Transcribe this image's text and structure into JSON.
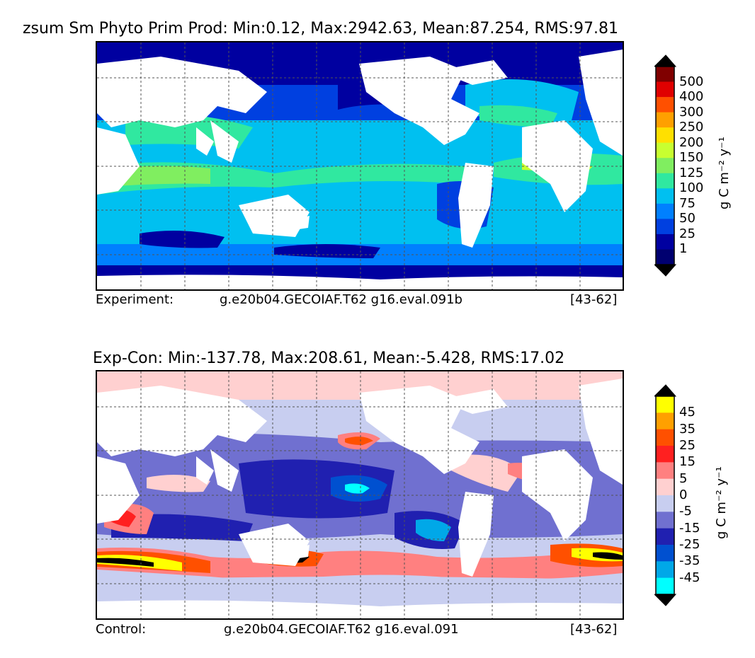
{
  "panels": [
    {
      "id": "experiment",
      "title": "zsum Sm Phyto Prim Prod: Min:0.12, Max:2942.63, Mean:87.254, RMS:97.81",
      "footer": {
        "label": "Experiment:",
        "case": "g.e20b04.GECOIAF.T62 g16.eval.091b",
        "years": "[43-62]"
      },
      "colorbar": {
        "ticks": [
          "500",
          "400",
          "300",
          "250",
          "200",
          "150",
          "125",
          "100",
          "75",
          "50",
          "25",
          "1"
        ],
        "colors_top_to_bottom": [
          "#800000",
          "#e00000",
          "#ff5000",
          "#ffa000",
          "#ffe000",
          "#c8ff30",
          "#80ee60",
          "#30e8a0",
          "#00c0f0",
          "#0080ff",
          "#0040e0",
          "#0000a0",
          "#000070"
        ],
        "unit": "g C m⁻² y⁻¹"
      }
    },
    {
      "id": "difference",
      "title": "Exp-Con: Min:-137.78, Max:208.61, Mean:-5.428, RMS:17.02",
      "footer": {
        "label": "Control:",
        "case": "g.e20b04.GECOIAF.T62 g16.eval.091",
        "years": "[43-62]"
      },
      "colorbar": {
        "ticks": [
          "45",
          "35",
          "25",
          "15",
          "5",
          "0",
          "-5",
          "-15",
          "-25",
          "-35",
          "-45"
        ],
        "colors_top_to_bottom": [
          "#ffff00",
          "#ffa000",
          "#ff5000",
          "#ff2020",
          "#ff8080",
          "#ffd0d0",
          "#c8cef0",
          "#7070d0",
          "#2020b0",
          "#0050d0",
          "#00a8e8",
          "#00ffff"
        ],
        "unit": "g C m⁻² y⁻¹"
      }
    }
  ]
}
